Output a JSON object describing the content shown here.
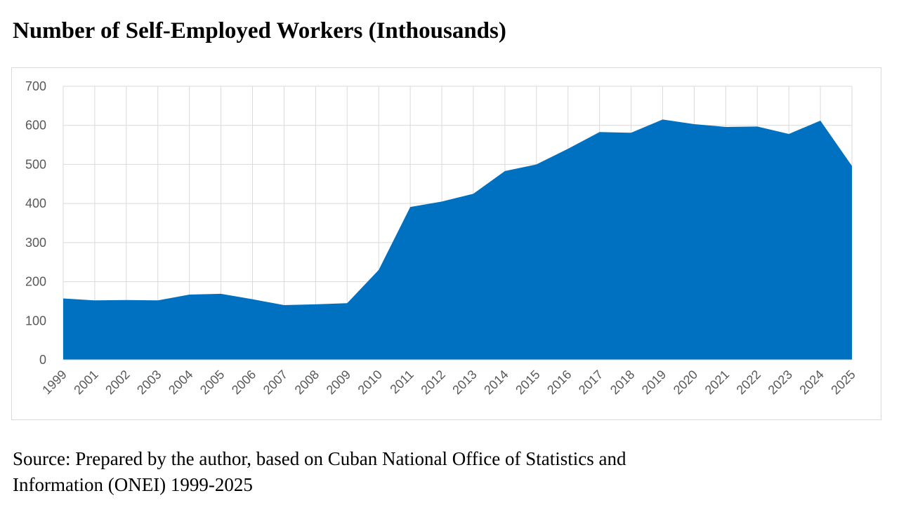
{
  "title": "Number of Self-Employed Workers (Inthousands)",
  "source_line1": "Source: Prepared by the author, based on Cuban National Office of Statistics and",
  "source_line2": "Information (ONEI) 1999-2025",
  "colors": {
    "area_fill": "#0070C0",
    "grid": "#d9d9d9",
    "tick_text": "#595959"
  },
  "chart_data": {
    "type": "area",
    "title": "Number of Self-Employed Workers (Inthousands)",
    "xlabel": "",
    "ylabel": "",
    "categories": [
      "1999",
      "2001",
      "2002",
      "2003",
      "2004",
      "2005",
      "2006",
      "2007",
      "2008",
      "2009",
      "2010",
      "2011",
      "2012",
      "2013",
      "2014",
      "2015",
      "2016",
      "2017",
      "2018",
      "2019",
      "2020",
      "2021",
      "2022",
      "2023",
      "2024",
      "2025"
    ],
    "series": [
      {
        "values": [
          157,
          152,
          153,
          152,
          167,
          169,
          155,
          140,
          142,
          145,
          230,
          391,
          405,
          425,
          483,
          500,
          540,
          583,
          581,
          615,
          603,
          596,
          597,
          578,
          612,
          496
        ]
      }
    ],
    "ylim": [
      0,
      700
    ],
    "yticks": [
      0,
      100,
      200,
      300,
      400,
      500,
      600,
      700
    ],
    "grid": true,
    "legend": "none"
  }
}
